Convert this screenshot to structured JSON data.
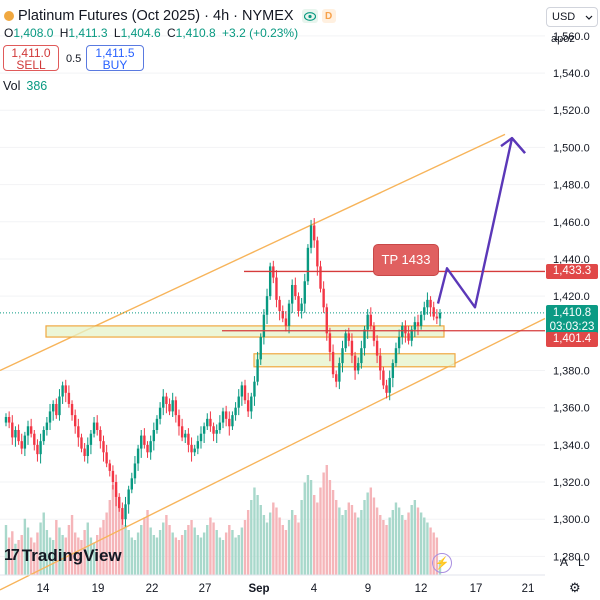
{
  "header": {
    "title": "Platinum Futures (Oct 2025) · 4h · NYMEX",
    "status_dot_color": "#f0a840",
    "badge_d": "D",
    "eye_icon": "eye-icon"
  },
  "ohlc": {
    "o_label": "O",
    "o": "1,408.0",
    "h_label": "H",
    "h": "1,411.3",
    "l_label": "L",
    "l": "1,404.6",
    "c_label": "C",
    "c": "1,410.8",
    "change": "+3.2 (+0.23%)"
  },
  "trade": {
    "sell_price": "1,411.0",
    "sell_label": "SELL",
    "spread": "0.5",
    "buy_price": "1,411.5",
    "buy_label": "BUY"
  },
  "volume": {
    "label": "Vol",
    "value": "386"
  },
  "top_right": {
    "currency": "USD",
    "scale": "apoz"
  },
  "price_tags": {
    "tp_line": "1,433.3",
    "current": "1,410.8",
    "countdown": "03:03:23",
    "support": "1,401.4"
  },
  "tp_label": "TP 1433",
  "logo": {
    "mark": "17",
    "text": "TradingView"
  },
  "bottom": {
    "auto": "A",
    "log": "L"
  },
  "colors": {
    "up": "#089981",
    "down": "#f23645",
    "channel": "#f7b45a",
    "zone_fill": "#e6f3c9",
    "zone_border": "#f0a840",
    "red_line": "#d63b3b",
    "projection": "#5b38b8",
    "vol_up": "#a8d8cb",
    "vol_down": "#f5b5b9"
  },
  "chart_data": {
    "type": "candlestick",
    "timeframe": "4h",
    "x_ticks": [
      "14",
      "19",
      "22",
      "27",
      "Sep",
      "4",
      "9",
      "12",
      "17",
      "21"
    ],
    "y_ticks": [
      "1,560.0",
      "1,540.0",
      "1,520.0",
      "1,500.0",
      "1,480.0",
      "1,460.0",
      "1,440.0",
      "1,420.0",
      "1,380.0",
      "1,360.0",
      "1,340.0",
      "1,320.0",
      "1,300.0",
      "1,280.0"
    ],
    "y_tick_values": [
      1560,
      1540,
      1520,
      1500,
      1480,
      1460,
      1440,
      1420,
      1380,
      1360,
      1340,
      1320,
      1300,
      1280
    ],
    "y_range": [
      1270,
      1575
    ],
    "candles_close": [
      1355,
      1352,
      1344,
      1348,
      1342,
      1338,
      1345,
      1350,
      1346,
      1340,
      1335,
      1342,
      1348,
      1352,
      1358,
      1362,
      1356,
      1366,
      1372,
      1368,
      1362,
      1356,
      1350,
      1344,
      1338,
      1334,
      1340,
      1346,
      1352,
      1348,
      1342,
      1336,
      1330,
      1326,
      1320,
      1312,
      1306,
      1300,
      1308,
      1316,
      1322,
      1330,
      1338,
      1345,
      1340,
      1336,
      1342,
      1348,
      1354,
      1360,
      1366,
      1362,
      1358,
      1364,
      1356,
      1350,
      1344,
      1346,
      1340,
      1336,
      1338,
      1342,
      1346,
      1350,
      1354,
      1350,
      1346,
      1348,
      1352,
      1358,
      1354,
      1350,
      1356,
      1360,
      1366,
      1372,
      1364,
      1358,
      1366,
      1374,
      1386,
      1398,
      1410,
      1420,
      1436,
      1430,
      1418,
      1412,
      1408,
      1404,
      1416,
      1426,
      1420,
      1412,
      1416,
      1428,
      1446,
      1458,
      1450,
      1436,
      1424,
      1414,
      1400,
      1390,
      1378,
      1374,
      1384,
      1392,
      1400,
      1396,
      1388,
      1380,
      1384,
      1392,
      1402,
      1410,
      1404,
      1396,
      1388,
      1380,
      1372,
      1368,
      1376,
      1384,
      1392,
      1398,
      1404,
      1400,
      1396,
      1402,
      1406,
      1404,
      1410,
      1414,
      1418,
      1414,
      1409,
      1408,
      1411
    ],
    "volume_values": [
      40,
      30,
      35,
      25,
      28,
      32,
      45,
      38,
      30,
      26,
      34,
      42,
      50,
      36,
      30,
      28,
      44,
      38,
      32,
      30,
      40,
      48,
      34,
      30,
      28,
      36,
      42,
      30,
      26,
      32,
      38,
      44,
      50,
      60,
      72,
      68,
      56,
      48,
      40,
      36,
      30,
      28,
      34,
      40,
      46,
      52,
      38,
      32,
      30,
      36,
      42,
      48,
      40,
      34,
      30,
      28,
      32,
      36,
      40,
      44,
      38,
      32,
      30,
      34,
      40,
      46,
      42,
      36,
      30,
      28,
      34,
      40,
      36,
      30,
      32,
      38,
      44,
      52,
      60,
      70,
      64,
      56,
      48,
      42,
      50,
      58,
      54,
      46,
      40,
      36,
      44,
      52,
      48,
      42,
      60,
      74,
      80,
      76,
      64,
      58,
      70,
      82,
      88,
      76,
      68,
      60,
      54,
      48,
      52,
      58,
      56,
      50,
      46,
      52,
      60,
      66,
      70,
      62,
      54,
      48,
      44,
      40,
      46,
      52,
      58,
      54,
      48,
      44,
      50,
      56,
      60,
      54,
      50,
      46,
      42,
      38,
      34,
      30,
      12
    ],
    "resistance_line": 1433.3,
    "support_line": 1401.4,
    "demand_zones": [
      [
        1398,
        1404
      ],
      [
        1382,
        1389
      ]
    ],
    "channel_upper": [
      [
        0,
        1380
      ],
      [
        505,
        1507
      ]
    ],
    "channel_lower": [
      [
        0,
        1262
      ],
      [
        545,
        1408
      ]
    ],
    "projection": [
      [
        438,
        1416
      ],
      [
        447,
        1435
      ],
      [
        475,
        1414
      ],
      [
        512,
        1505
      ],
      [
        525,
        1497
      ]
    ]
  }
}
